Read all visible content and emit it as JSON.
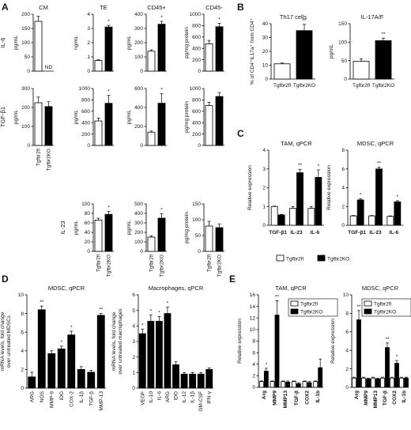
{
  "figure": {
    "panels": [
      "A",
      "B",
      "C",
      "D",
      "E"
    ],
    "groups": {
      "fl": "Tgfbr2fl",
      "ko": "Tgfbr2KO"
    }
  },
  "chart_data": [
    {
      "id": "A11",
      "type": "bar",
      "title": "CM",
      "rowlabel": "IL-6",
      "ylabel": "pg/mL",
      "ylim": [
        0,
        200
      ],
      "yticks": [
        0,
        50,
        100,
        150,
        200
      ],
      "bars": [
        {
          "v": 175,
          "e": 18,
          "fill": "w"
        },
        {
          "v": 0,
          "e": 0,
          "fill": "b",
          "label": "ND"
        }
      ],
      "sig": [
        "",
        ""
      ]
    },
    {
      "id": "A12",
      "type": "bar",
      "title": "TE",
      "ylabel": "ng/mL",
      "ylim": [
        0,
        4
      ],
      "yticks": [
        0,
        1,
        2,
        3,
        4
      ],
      "bars": [
        {
          "v": 0.75,
          "e": 0.05,
          "fill": "w"
        },
        {
          "v": 3.1,
          "e": 0.12,
          "fill": "b"
        }
      ],
      "sig": [
        "",
        "*"
      ]
    },
    {
      "id": "A13",
      "type": "bar",
      "title": "CD45+",
      "ylabel": "pg/mL",
      "ylim": [
        0,
        400
      ],
      "yticks": [
        0,
        100,
        200,
        300,
        400
      ],
      "bars": [
        {
          "v": 140,
          "e": 10,
          "fill": "w"
        },
        {
          "v": 330,
          "e": 20,
          "fill": "b"
        }
      ],
      "sig": [
        "",
        "*"
      ]
    },
    {
      "id": "A14",
      "type": "bar",
      "title": "CD45-",
      "ylabel": "pg/mg protein",
      "ylim": [
        0,
        1000
      ],
      "yticks": [
        0,
        200,
        400,
        600,
        800,
        1000
      ],
      "bars": [
        {
          "v": 480,
          "e": 60,
          "fill": "w"
        },
        {
          "v": 780,
          "e": 60,
          "fill": "b"
        }
      ],
      "sig": [
        "",
        "*"
      ]
    },
    {
      "id": "A21",
      "type": "bar",
      "rowlabel": "TGF-β1",
      "ylabel": "pg/mL",
      "ylim": [
        0,
        300
      ],
      "yticks": [
        0,
        100,
        200,
        300
      ],
      "bars": [
        {
          "v": 225,
          "e": 30,
          "fill": "w"
        },
        {
          "v": 205,
          "e": 25,
          "fill": "b"
        }
      ],
      "sig": [
        "",
        ""
      ],
      "xcat": [
        "Tgfbr2fl",
        "Tgfbr2KO"
      ]
    },
    {
      "id": "A22",
      "type": "bar",
      "ylabel": "pg/mL",
      "ylim": [
        0,
        1000
      ],
      "yticks": [
        0,
        200,
        400,
        600,
        800,
        1000
      ],
      "bars": [
        {
          "v": 430,
          "e": 50,
          "fill": "w"
        },
        {
          "v": 740,
          "e": 140,
          "fill": "b"
        }
      ],
      "sig": [
        "",
        "*"
      ]
    },
    {
      "id": "A23",
      "type": "bar",
      "ylabel": "pg/mL",
      "ylim": [
        0,
        600
      ],
      "yticks": [
        0,
        200,
        400,
        600
      ],
      "bars": [
        {
          "v": 140,
          "e": 12,
          "fill": "w"
        },
        {
          "v": 445,
          "e": 100,
          "fill": "b"
        }
      ],
      "sig": [
        "",
        "*"
      ]
    },
    {
      "id": "A24",
      "type": "bar",
      "ylabel": "pg/mg protein",
      "ylim": [
        0,
        1000
      ],
      "yticks": [
        0,
        200,
        400,
        600,
        800,
        1000
      ],
      "bars": [
        {
          "v": 700,
          "e": 60,
          "fill": "w"
        },
        {
          "v": 860,
          "e": 70,
          "fill": "b"
        }
      ],
      "sig": [
        "",
        ""
      ]
    },
    {
      "id": "A32",
      "type": "bar",
      "rowlabel": "IL-23",
      "ylabel": "pg/mL",
      "ylim": [
        0,
        100
      ],
      "yticks": [
        0,
        20,
        40,
        60,
        80,
        100
      ],
      "bars": [
        {
          "v": 66,
          "e": 4,
          "fill": "w"
        },
        {
          "v": 78,
          "e": 6,
          "fill": "b"
        }
      ],
      "sig": [
        "",
        "*"
      ],
      "xcat": [
        "Tgfbr2fl",
        "Tgfbr2KO"
      ]
    },
    {
      "id": "A33",
      "type": "bar",
      "ylabel": "pg/mL",
      "ylim": [
        0,
        500
      ],
      "yticks": [
        0,
        100,
        200,
        300,
        400,
        500
      ],
      "bars": [
        {
          "v": 150,
          "e": 15,
          "fill": "w"
        },
        {
          "v": 350,
          "e": 45,
          "fill": "b"
        }
      ],
      "sig": [
        "",
        "*"
      ],
      "xcat": [
        "Tgfbr2fl",
        "Tgfbr2KO"
      ]
    },
    {
      "id": "A34",
      "type": "bar",
      "ylabel": "pg/mg protein",
      "ylim": [
        0,
        150
      ],
      "yticks": [
        0,
        50,
        100,
        150
      ],
      "bars": [
        {
          "v": 80,
          "e": 15,
          "fill": "w"
        },
        {
          "v": 75,
          "e": 12,
          "fill": "b"
        }
      ],
      "sig": [
        "",
        ""
      ],
      "xcat": [
        "Tgfbr2fl",
        "Tgfbr2KO"
      ]
    },
    {
      "id": "B1",
      "type": "bar",
      "title": "Th17 cells",
      "ylabel": "% of CD4⁺IL17a⁺ from CD4⁺",
      "ylim": [
        0,
        40
      ],
      "yticks": [
        0,
        10,
        20,
        30,
        40
      ],
      "bars": [
        {
          "v": 11,
          "e": 0.6,
          "fill": "w"
        },
        {
          "v": 35,
          "e": 4.5,
          "fill": "b"
        }
      ],
      "sig": [
        "",
        "**"
      ],
      "xcat": [
        "Tgfbr2fl",
        "Tgfbr2KO"
      ]
    },
    {
      "id": "B2",
      "type": "bar",
      "title": "IL-17A/F",
      "ylabel": "pg/mL",
      "ylim": [
        0,
        150
      ],
      "yticks": [
        0,
        50,
        100,
        150
      ],
      "bars": [
        {
          "v": 48,
          "e": 7,
          "fill": "w"
        },
        {
          "v": 104,
          "e": 7,
          "fill": "b"
        }
      ],
      "sig": [
        "",
        "**"
      ],
      "xcat": [
        "Tgfbr2fl",
        "Tgfbr2KO"
      ]
    },
    {
      "id": "C1",
      "type": "bar",
      "title": "TAM, qPCR",
      "ylabel": "Relative expression",
      "ylim": [
        0,
        4
      ],
      "yticks": [
        0,
        1,
        2,
        3,
        4
      ],
      "categories": [
        "TGF-β1",
        "IL-23",
        "IL-6"
      ],
      "series": [
        {
          "name": "Tgfbr2fl",
          "values": [
            1.0,
            0.9,
            0.9
          ],
          "err": [
            0.02,
            0.1,
            0.1
          ]
        },
        {
          "name": "Tgfbr2KO",
          "values": [
            0.55,
            2.8,
            2.55
          ],
          "err": [
            0.03,
            0.18,
            0.4
          ]
        }
      ],
      "sig": [
        "",
        "**",
        "*"
      ]
    },
    {
      "id": "C2",
      "type": "bar",
      "title": "MDSC, qPCR",
      "ylabel": "Relative expression",
      "ylim": [
        0,
        8
      ],
      "yticks": [
        0,
        2,
        4,
        6,
        8
      ],
      "categories": [
        "TGF-β1",
        "IL-23",
        "IL-6"
      ],
      "series": [
        {
          "name": "Tgfbr2fl",
          "values": [
            1.0,
            1.0,
            0.95
          ],
          "err": [
            0.05,
            0.05,
            0.05
          ]
        },
        {
          "name": "Tgfbr2KO",
          "values": [
            2.7,
            6.0,
            2.5
          ],
          "err": [
            0.12,
            0.2,
            0.12
          ]
        }
      ],
      "sig": [
        "*",
        "**",
        "*"
      ]
    },
    {
      "id": "D1",
      "type": "bar",
      "title": "MDSC, qPCR",
      "ylabel": "mRNA levels, fold change over untreated MDSCs",
      "ylim": [
        0,
        10
      ],
      "yticks": [
        0,
        2,
        4,
        6,
        8,
        10
      ],
      "categories": [
        "ARG",
        "NOS",
        "MMP-9",
        "IDO",
        "COX-2",
        "IL-1β",
        "TGF-β",
        "MMP-13"
      ],
      "values": [
        1.2,
        8.4,
        3.7,
        4.2,
        5.7,
        2.0,
        1.7,
        7.8
      ],
      "err": [
        0.5,
        0.4,
        0.3,
        0.3,
        0.4,
        0.3,
        0.2,
        0.2
      ],
      "sig": [
        "",
        "**",
        "",
        "*",
        "*",
        "",
        "",
        "**"
      ]
    },
    {
      "id": "D2",
      "type": "bar",
      "title": "Macrophages, qPCR",
      "ylabel": "mRNA levels, fold change over untreated macrophages",
      "ylim": [
        0,
        6
      ],
      "yticks": [
        0,
        1,
        2,
        3,
        4,
        5,
        6
      ],
      "categories": [
        "VEGF",
        "IL-10",
        "IL-6",
        "ARG",
        "IDO",
        "IL-12",
        "IL-1β",
        "GM-CSF",
        "IFN-γ"
      ],
      "values": [
        3.5,
        4.3,
        4.3,
        4.8,
        1.5,
        0.9,
        0.9,
        0.9,
        1.2
      ],
      "err": [
        0.3,
        0.4,
        0.3,
        0.4,
        0.2,
        0.1,
        0.1,
        0.1,
        0.1
      ],
      "sig": [
        "*",
        "*",
        "*",
        "*",
        "",
        "",
        "",
        "",
        ""
      ]
    },
    {
      "id": "E1",
      "type": "bar",
      "title": "TAM, qPCR",
      "ylabel": "Relative expression",
      "ylim": [
        0,
        16
      ],
      "yticks": [
        0,
        2,
        4,
        6,
        8,
        10,
        12,
        14,
        16
      ],
      "categories": [
        "Arg",
        "MMP9",
        "MMP13",
        "TGF-β",
        "COX2",
        "IL-1b"
      ],
      "series": [
        {
          "name": "Tgfbr2fl",
          "values": [
            1.0,
            1.0,
            1.0,
            1.0,
            1.0,
            1.0
          ],
          "err": [
            0.1,
            0.1,
            0.1,
            0.1,
            0.1,
            0.1
          ]
        },
        {
          "name": "Tgfbr2KO",
          "values": [
            2.8,
            12.5,
            0.9,
            0.6,
            0.8,
            3.4
          ],
          "err": [
            0.5,
            2.5,
            0.2,
            0.2,
            0.2,
            1.5
          ]
        }
      ],
      "sig": [
        "*",
        "**",
        "",
        "",
        "",
        ""
      ]
    },
    {
      "id": "E2",
      "type": "bar",
      "title": "MDSC, qPCR",
      "ylabel": "Relative expression",
      "ylim": [
        0,
        10
      ],
      "yticks": [
        0,
        2,
        4,
        6,
        8,
        10
      ],
      "categories": [
        "Arg",
        "MMP9",
        "MMP13",
        "TGF-β",
        "COX2",
        "IL-1b"
      ],
      "series": [
        {
          "name": "Tgfbr2fl",
          "values": [
            1.0,
            1.0,
            1.0,
            1.0,
            1.0,
            1.0
          ],
          "err": [
            0.1,
            0.1,
            0.1,
            0.1,
            0.1,
            0.1
          ]
        },
        {
          "name": "Tgfbr2KO",
          "values": [
            7.3,
            0.9,
            0.9,
            4.3,
            2.6,
            1.0
          ],
          "err": [
            1.0,
            0.1,
            0.1,
            0.5,
            0.3,
            0.1
          ]
        }
      ],
      "sig": [
        "**",
        "",
        "",
        "**",
        "*",
        ""
      ]
    }
  ]
}
